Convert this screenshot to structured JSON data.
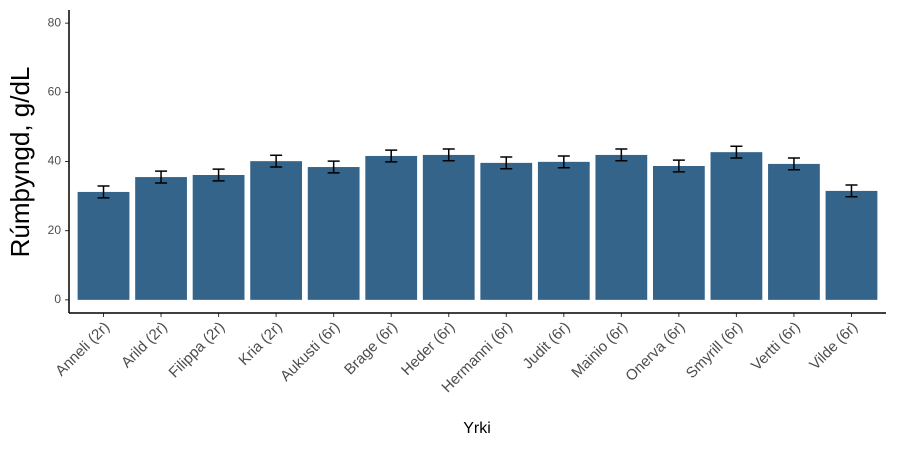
{
  "chart_data": {
    "type": "bar",
    "x_label": "Yrki",
    "y_label": "Rúmþyngd, g/dL",
    "categories": [
      "Anneli (2r)",
      "Arild (2r)",
      "Filippa (2r)",
      "Kria (2r)",
      "Aukusti (6r)",
      "Brage (6r)",
      "Heder (6r)",
      "Hermanni (6r)",
      "Judit (6r)",
      "Mainio (6r)",
      "Onerva (6r)",
      "Smyrill (6r)",
      "Vertti (6r)",
      "Vilde (6r)"
    ],
    "values": [
      31.2,
      35.5,
      36.1,
      40.1,
      38.4,
      41.6,
      41.9,
      39.6,
      39.9,
      41.9,
      38.7,
      42.7,
      39.3,
      31.5
    ],
    "errors": [
      1.7,
      1.7,
      1.7,
      1.7,
      1.7,
      1.7,
      1.7,
      1.7,
      1.7,
      1.7,
      1.7,
      1.7,
      1.7,
      1.7
    ],
    "color": "#35648a",
    "ylim": [
      -3.8,
      83.8
    ],
    "yticks": [
      0,
      20,
      40,
      60,
      80
    ],
    "grid": false
  }
}
